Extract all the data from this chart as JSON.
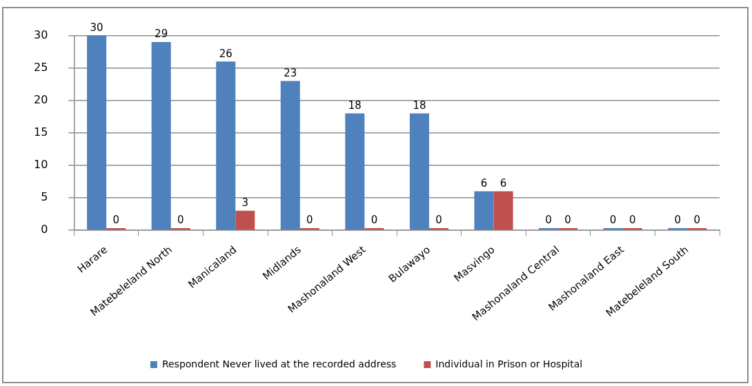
{
  "chart_data": {
    "type": "bar",
    "categories": [
      "Harare",
      "Matebeleland North",
      "Manicaland",
      "Midlands",
      "Mashonaland West",
      "Bulawayo",
      "Masvingo",
      "Mashonaland Central",
      "Mashonaland East",
      "Matebeleland South"
    ],
    "series": [
      {
        "name": "Respondent Never lived at the recorded address",
        "color": "#4f81bd",
        "values": [
          30,
          29,
          26,
          23,
          18,
          18,
          6,
          0,
          0,
          0
        ]
      },
      {
        "name": "Individual in Prison or Hospital",
        "color": "#c0504d",
        "values": [
          0,
          0,
          3,
          0,
          0,
          0,
          6,
          0,
          0,
          0
        ]
      }
    ],
    "ylim": [
      0,
      30
    ],
    "yticks": [
      0,
      5,
      10,
      15,
      20,
      25,
      30
    ],
    "grid": "y",
    "legend": "bottom",
    "data_labels": true
  }
}
